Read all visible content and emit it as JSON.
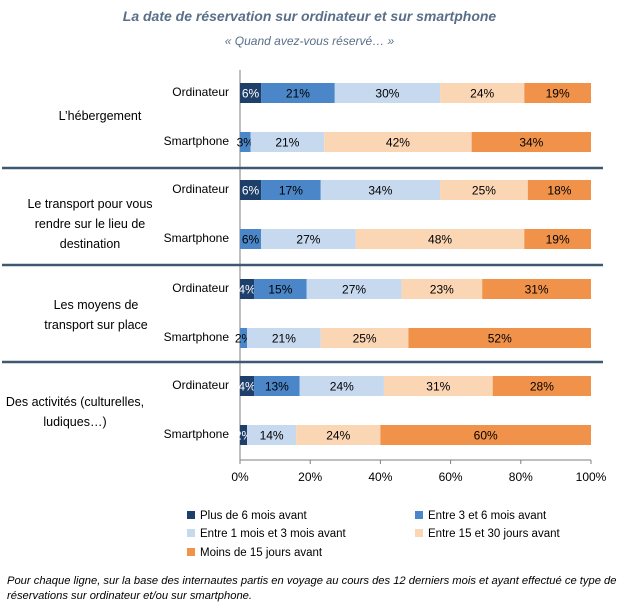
{
  "chart_data": {
    "type": "bar",
    "stacked": true,
    "orientation": "horizontal",
    "title": "La date de réservation sur ordinateur et sur smartphone",
    "subtitle": "« Quand avez-vous réservé… »",
    "xlim": [
      0,
      100
    ],
    "x_ticks": [
      "0%",
      "20%",
      "40%",
      "60%",
      "80%",
      "100%"
    ],
    "legend_position": "bottom",
    "series": [
      {
        "name": "Plus de 6 mois avant",
        "color": "#1f3f6b"
      },
      {
        "name": "Entre 3 et 6 mois avant",
        "color": "#4a86c8"
      },
      {
        "name": "Entre 1 mois et 3 mois avant",
        "color": "#c7d9ef"
      },
      {
        "name": "Entre 15 et 30 jours avant",
        "color": "#fbd6b5"
      },
      {
        "name": "Moins de 15 jours avant",
        "color": "#f0924a"
      }
    ],
    "groups": [
      {
        "label": "L’hébergement",
        "rows": [
          {
            "label": "Ordinateur",
            "values": [
              6,
              21,
              30,
              24,
              19
            ],
            "labels": [
              "6%",
              "21%",
              "30%",
              "24%",
              "19%"
            ]
          },
          {
            "label": "Smartphone",
            "values": [
              0,
              3,
              21,
              42,
              34
            ],
            "labels": [
              "",
              "3%",
              "21%",
              "42%",
              "34%"
            ]
          }
        ]
      },
      {
        "label": "Le transport pour vous rendre sur le lieu de destination",
        "rows": [
          {
            "label": "Ordinateur",
            "values": [
              6,
              17,
              34,
              25,
              18
            ],
            "labels": [
              "6%",
              "17%",
              "34%",
              "25%",
              "18%"
            ]
          },
          {
            "label": "Smartphone",
            "values": [
              0,
              6,
              27,
              48,
              19
            ],
            "labels": [
              "",
              "6%",
              "27%",
              "48%",
              "19%"
            ]
          }
        ]
      },
      {
        "label": "Les moyens de transport sur place",
        "rows": [
          {
            "label": "Ordinateur",
            "values": [
              4,
              15,
              27,
              23,
              31
            ],
            "labels": [
              "4%",
              "15%",
              "27%",
              "23%",
              "31%"
            ]
          },
          {
            "label": "Smartphone",
            "values": [
              0,
              2,
              21,
              25,
              52
            ],
            "labels": [
              "",
              "2%",
              "21%",
              "25%",
              "52%"
            ]
          }
        ]
      },
      {
        "label": "Des activités (culturelles, ludiques…)",
        "rows": [
          {
            "label": "Ordinateur",
            "values": [
              4,
              13,
              24,
              31,
              28
            ],
            "labels": [
              "4%",
              "13%",
              "24%",
              "31%",
              "28%"
            ]
          },
          {
            "label": "Smartphone",
            "values": [
              2,
              0,
              14,
              24,
              60
            ],
            "labels": [
              "2%",
              "",
              "14%",
              "24%",
              "60%"
            ]
          }
        ]
      }
    ]
  },
  "footnote": "Pour chaque ligne, sur la base des internautes partis en voyage au cours des 12 derniers mois et ayant effectué ce type de réservations sur ordinateur et/ou sur smartphone."
}
